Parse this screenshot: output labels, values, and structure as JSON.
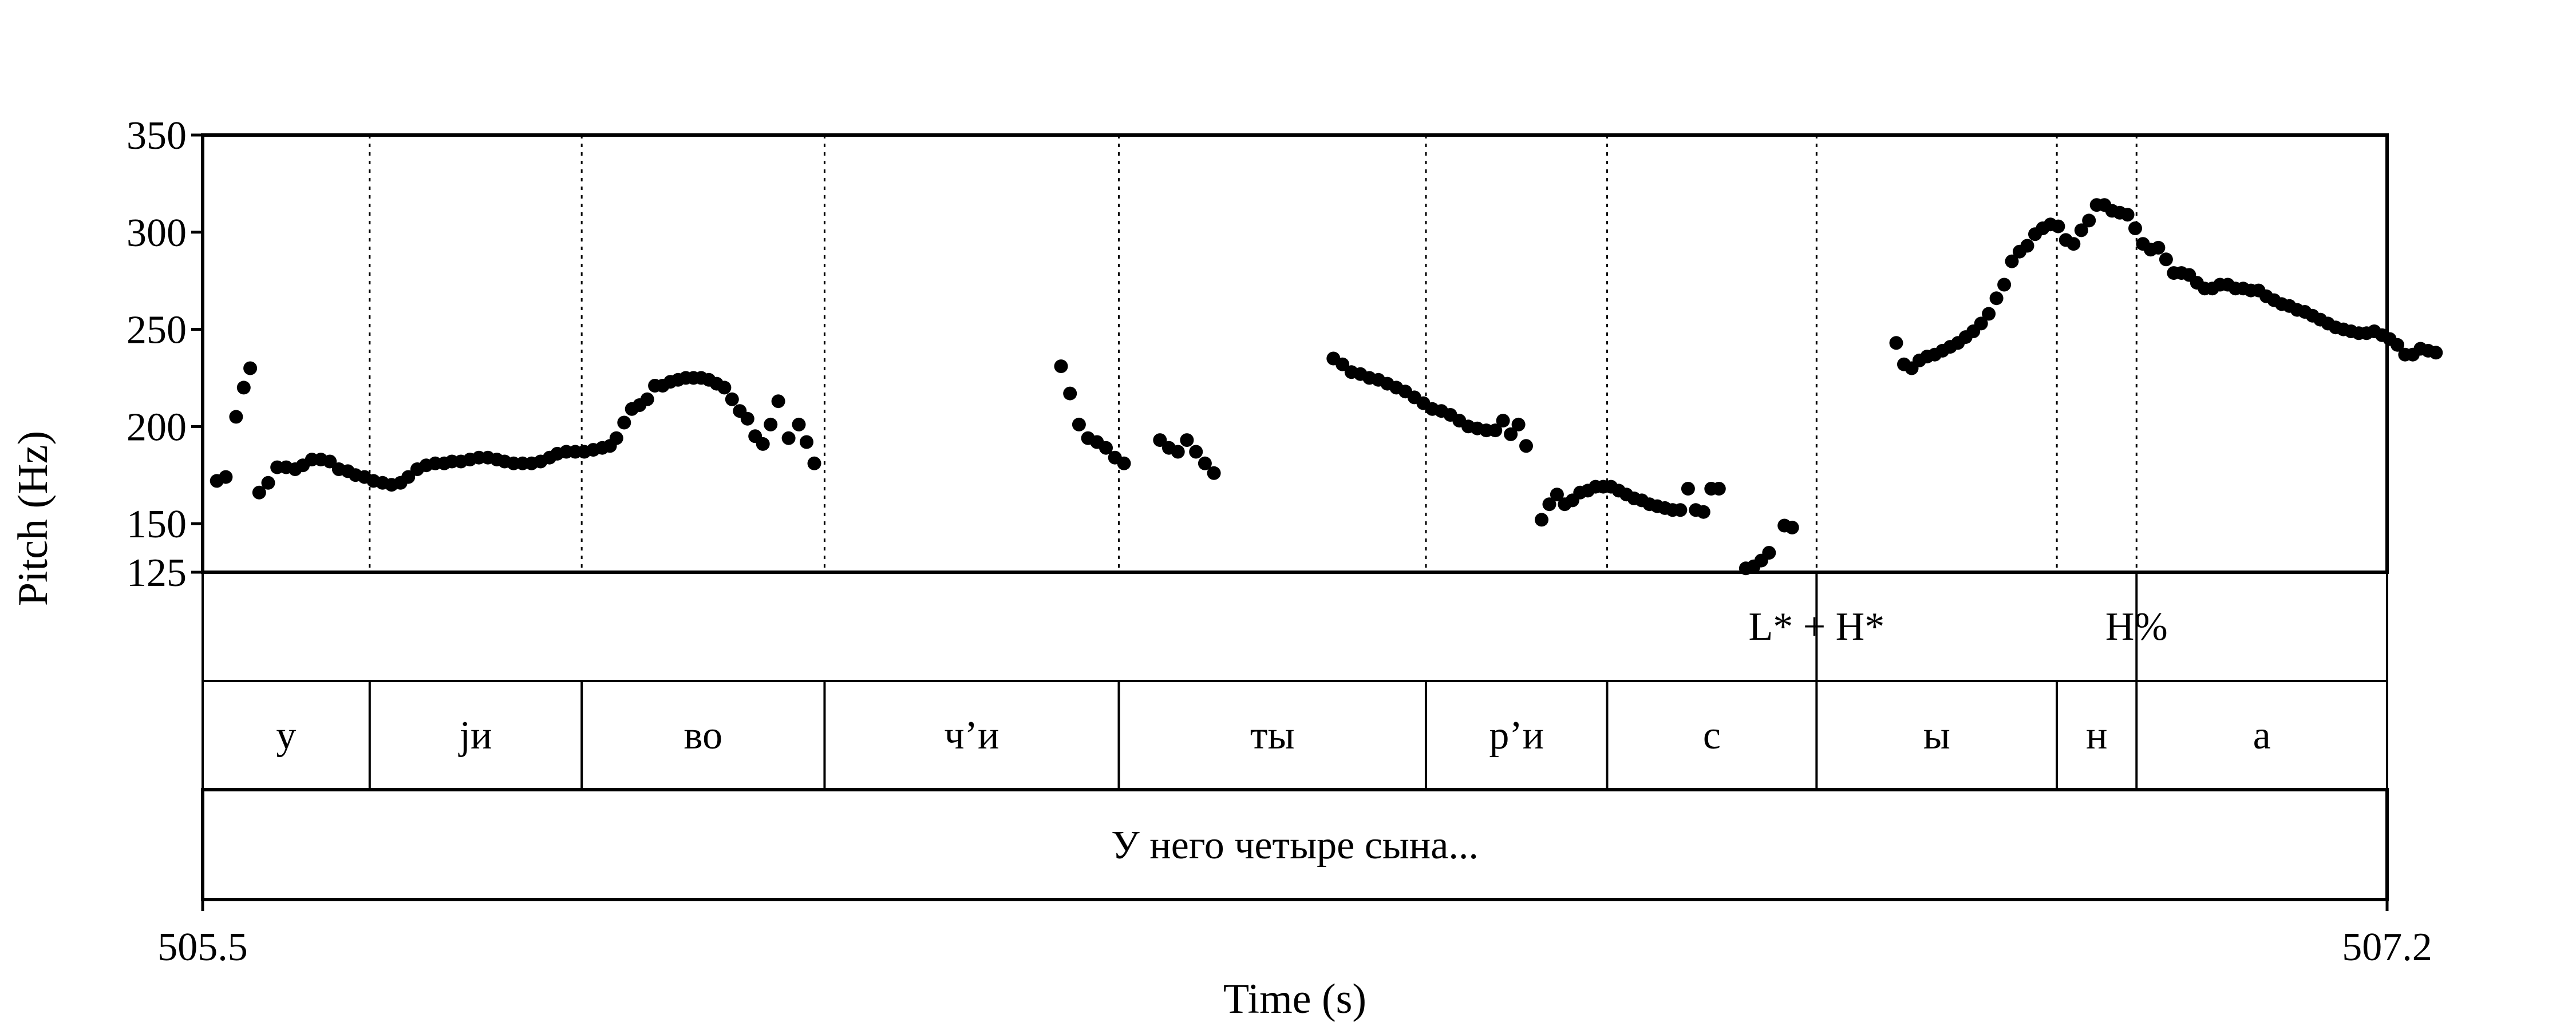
{
  "chart_data": {
    "type": "scatter",
    "xlabel": "Time (s)",
    "ylabel": "Pitch (Hz)",
    "xlim": [
      505.5,
      507.2
    ],
    "ylim": [
      125,
      350
    ],
    "x_tick_labels": [
      "505.5",
      "507.2"
    ],
    "y_tick_labels": [
      "350",
      "300",
      "250",
      "200",
      "150",
      "125"
    ],
    "y_ticks": [
      350,
      300,
      250,
      200,
      150,
      125
    ],
    "marker_color": "#000000",
    "pitch_points": [
      [
        505.511,
        172
      ],
      [
        505.518,
        174
      ],
      [
        505.526,
        205
      ],
      [
        505.532,
        220
      ],
      [
        505.537,
        230
      ],
      [
        505.544,
        166
      ],
      [
        505.551,
        171
      ],
      [
        505.558,
        179
      ],
      [
        505.565,
        179
      ],
      [
        505.572,
        178
      ],
      [
        505.578,
        180
      ],
      [
        505.585,
        183
      ],
      [
        505.592,
        183
      ],
      [
        505.599,
        182
      ],
      [
        505.606,
        178
      ],
      [
        505.613,
        177
      ],
      [
        505.619,
        175
      ],
      [
        505.626,
        174
      ],
      [
        505.633,
        172
      ],
      [
        505.64,
        171
      ],
      [
        505.647,
        170
      ],
      [
        505.654,
        171
      ],
      [
        505.66,
        174
      ],
      [
        505.667,
        178
      ],
      [
        505.674,
        180
      ],
      [
        505.681,
        181
      ],
      [
        505.688,
        181
      ],
      [
        505.694,
        182
      ],
      [
        505.701,
        182
      ],
      [
        505.708,
        183
      ],
      [
        505.715,
        184
      ],
      [
        505.722,
        184
      ],
      [
        505.729,
        183
      ],
      [
        505.735,
        182
      ],
      [
        505.742,
        181
      ],
      [
        505.749,
        181
      ],
      [
        505.756,
        181
      ],
      [
        505.763,
        182
      ],
      [
        505.77,
        184
      ],
      [
        505.776,
        186
      ],
      [
        505.783,
        187
      ],
      [
        505.79,
        187
      ],
      [
        505.797,
        187
      ],
      [
        505.804,
        188
      ],
      [
        505.811,
        189
      ],
      [
        505.817,
        190
      ],
      [
        505.822,
        194
      ],
      [
        505.828,
        202
      ],
      [
        505.834,
        209
      ],
      [
        505.84,
        211
      ],
      [
        505.846,
        214
      ],
      [
        505.852,
        221
      ],
      [
        505.858,
        221
      ],
      [
        505.864,
        223
      ],
      [
        505.87,
        224
      ],
      [
        505.876,
        225
      ],
      [
        505.882,
        225
      ],
      [
        505.888,
        225
      ],
      [
        505.894,
        224
      ],
      [
        505.9,
        222
      ],
      [
        505.906,
        220
      ],
      [
        505.912,
        214
      ],
      [
        505.918,
        208
      ],
      [
        505.924,
        204
      ],
      [
        505.93,
        195
      ],
      [
        505.936,
        191
      ],
      [
        505.942,
        201
      ],
      [
        505.948,
        213
      ],
      [
        505.956,
        194
      ],
      [
        505.964,
        201
      ],
      [
        505.97,
        192
      ],
      [
        505.976,
        181
      ],
      [
        506.168,
        231
      ],
      [
        506.175,
        217
      ],
      [
        506.182,
        201
      ],
      [
        506.189,
        194
      ],
      [
        506.196,
        192
      ],
      [
        506.203,
        189
      ],
      [
        506.21,
        184
      ],
      [
        506.217,
        181
      ],
      [
        506.245,
        193
      ],
      [
        506.252,
        189
      ],
      [
        506.259,
        187
      ],
      [
        506.266,
        193
      ],
      [
        506.273,
        187
      ],
      [
        506.28,
        181
      ],
      [
        506.287,
        176
      ],
      [
        506.38,
        235
      ],
      [
        506.387,
        232
      ],
      [
        506.394,
        228
      ],
      [
        506.401,
        227
      ],
      [
        506.408,
        225
      ],
      [
        506.415,
        224
      ],
      [
        506.422,
        222
      ],
      [
        506.429,
        220
      ],
      [
        506.436,
        218
      ],
      [
        506.443,
        215
      ],
      [
        506.45,
        212
      ],
      [
        506.457,
        209
      ],
      [
        506.464,
        208
      ],
      [
        506.471,
        206
      ],
      [
        506.478,
        203
      ],
      [
        506.485,
        200
      ],
      [
        506.492,
        199
      ],
      [
        506.499,
        198
      ],
      [
        506.506,
        198
      ],
      [
        506.512,
        203
      ],
      [
        506.518,
        196
      ],
      [
        506.524,
        201
      ],
      [
        506.53,
        190
      ],
      [
        506.542,
        152
      ],
      [
        506.548,
        160
      ],
      [
        506.554,
        165
      ],
      [
        506.56,
        160
      ],
      [
        506.566,
        162
      ],
      [
        506.572,
        166
      ],
      [
        506.578,
        167
      ],
      [
        506.584,
        169
      ],
      [
        506.59,
        169
      ],
      [
        506.596,
        169
      ],
      [
        506.602,
        167
      ],
      [
        506.608,
        165
      ],
      [
        506.614,
        163
      ],
      [
        506.62,
        162
      ],
      [
        506.626,
        160
      ],
      [
        506.632,
        159
      ],
      [
        506.638,
        158
      ],
      [
        506.644,
        157
      ],
      [
        506.65,
        157
      ],
      [
        506.656,
        168
      ],
      [
        506.662,
        157
      ],
      [
        506.668,
        156
      ],
      [
        506.674,
        168
      ],
      [
        506.68,
        168
      ],
      [
        506.701,
        127
      ],
      [
        506.707,
        128
      ],
      [
        506.713,
        131
      ],
      [
        506.719,
        135
      ],
      [
        506.731,
        149
      ],
      [
        506.737,
        148
      ],
      [
        506.818,
        243
      ],
      [
        506.824,
        232
      ],
      [
        506.83,
        230
      ],
      [
        506.836,
        234
      ],
      [
        506.842,
        236
      ],
      [
        506.848,
        237
      ],
      [
        506.854,
        239
      ],
      [
        506.86,
        241
      ],
      [
        506.866,
        243
      ],
      [
        506.872,
        246
      ],
      [
        506.878,
        249
      ],
      [
        506.884,
        253
      ],
      [
        506.89,
        258
      ],
      [
        506.896,
        266
      ],
      [
        506.902,
        273
      ],
      [
        506.908,
        285
      ],
      [
        506.914,
        290
      ],
      [
        506.92,
        293
      ],
      [
        506.926,
        299
      ],
      [
        506.932,
        302
      ],
      [
        506.938,
        304
      ],
      [
        506.944,
        303
      ],
      [
        506.95,
        296
      ],
      [
        506.956,
        294
      ],
      [
        506.962,
        301
      ],
      [
        506.968,
        306
      ],
      [
        506.974,
        314
      ],
      [
        506.98,
        314
      ],
      [
        506.986,
        311
      ],
      [
        506.992,
        310
      ],
      [
        506.998,
        309
      ],
      [
        507.004,
        302
      ],
      [
        507.01,
        294
      ],
      [
        507.016,
        291
      ],
      [
        507.022,
        292
      ],
      [
        507.028,
        286
      ],
      [
        507.034,
        279
      ],
      [
        507.04,
        279
      ],
      [
        507.046,
        278
      ],
      [
        507.052,
        274
      ],
      [
        507.058,
        271
      ],
      [
        507.064,
        271
      ],
      [
        507.07,
        273
      ],
      [
        507.076,
        273
      ],
      [
        507.082,
        271
      ],
      [
        507.088,
        271
      ],
      [
        507.094,
        270
      ],
      [
        507.1,
        270
      ],
      [
        507.106,
        267
      ],
      [
        507.112,
        265
      ],
      [
        507.118,
        263
      ],
      [
        507.124,
        262
      ],
      [
        507.13,
        260
      ],
      [
        507.136,
        259
      ],
      [
        507.142,
        257
      ],
      [
        507.148,
        255
      ],
      [
        507.154,
        253
      ],
      [
        507.16,
        251
      ],
      [
        507.166,
        250
      ],
      [
        507.172,
        249
      ],
      [
        507.178,
        248
      ],
      [
        507.184,
        248
      ],
      [
        507.19,
        249
      ],
      [
        507.196,
        247
      ],
      [
        507.202,
        245
      ],
      [
        507.208,
        242
      ],
      [
        507.214,
        237
      ],
      [
        507.22,
        237
      ],
      [
        507.226,
        240
      ],
      [
        507.232,
        239
      ],
      [
        507.238,
        238
      ]
    ],
    "boundaries": [
      505.63,
      505.795,
      505.984,
      506.213,
      506.452,
      506.593,
      506.756,
      506.943,
      507.005
    ],
    "tones": [
      {
        "label": "L* + H*",
        "time": 506.756
      },
      {
        "label": "H%",
        "time": 507.005
      }
    ],
    "segments": [
      {
        "label": "у",
        "start": 505.5,
        "end": 505.63
      },
      {
        "label": "jи",
        "start": 505.63,
        "end": 505.795
      },
      {
        "label": "во",
        "start": 505.795,
        "end": 505.984
      },
      {
        "label": "ч’и",
        "start": 505.984,
        "end": 506.213
      },
      {
        "label": "ты",
        "start": 506.213,
        "end": 506.452
      },
      {
        "label": "р’и",
        "start": 506.452,
        "end": 506.593
      },
      {
        "label": "с",
        "start": 506.593,
        "end": 506.756
      },
      {
        "label": "ы",
        "start": 506.756,
        "end": 506.943
      },
      {
        "label": "н",
        "start": 506.943,
        "end": 507.005
      },
      {
        "label": "а",
        "start": 507.005,
        "end": 507.2
      }
    ],
    "utterance": "У него четыре сына..."
  }
}
